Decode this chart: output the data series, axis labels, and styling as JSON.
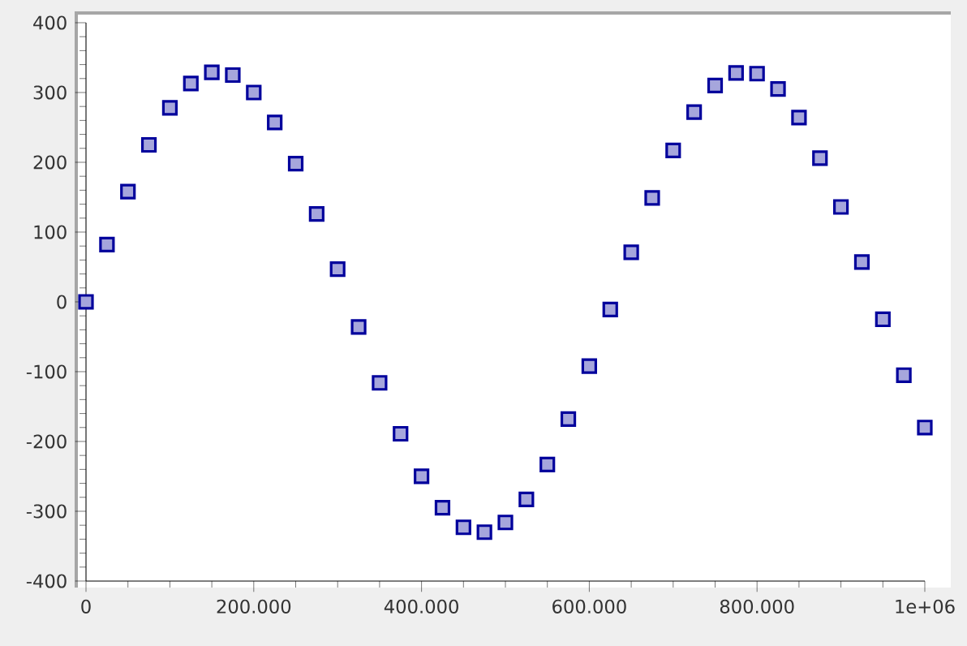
{
  "chart_data": {
    "type": "scatter",
    "marker": "square",
    "x": [
      0,
      25000,
      50000,
      75000,
      100000,
      125000,
      150000,
      175000,
      200000,
      225000,
      250000,
      275000,
      300000,
      325000,
      350000,
      375000,
      400000,
      425000,
      450000,
      475000,
      500000,
      525000,
      550000,
      575000,
      600000,
      625000,
      650000,
      675000,
      700000,
      725000,
      750000,
      775000,
      800000,
      825000,
      850000,
      875000,
      900000,
      925000,
      950000,
      975000,
      1000000
    ],
    "series": [
      {
        "color": "#00009c",
        "values": [
          0,
          82,
          158,
          225,
          278,
          313,
          329,
          325,
          300,
          257,
          198,
          126,
          47,
          -36,
          -116,
          -189,
          -250,
          -295,
          -323,
          -330,
          -316,
          -283,
          -233,
          -168,
          -92,
          -11,
          71,
          149,
          217,
          272,
          310,
          328,
          327,
          305,
          264,
          206,
          136,
          57,
          -25,
          -105,
          -180
        ]
      }
    ],
    "xlim": [
      0,
      1000000
    ],
    "xticks": [
      0,
      {
        "value": 200000,
        "label": "200.000"
      },
      {
        "value": 400000,
        "label": "400.000"
      },
      {
        "value": 600000,
        "label": "600.000"
      },
      {
        "value": 800000,
        "label": "800.000"
      },
      {
        "value": 1000000,
        "label": "1e+06"
      }
    ],
    "ylim": [
      -400,
      400
    ],
    "yticks": [
      -400,
      -300,
      -200,
      -100,
      0,
      100,
      200,
      300,
      400
    ]
  }
}
